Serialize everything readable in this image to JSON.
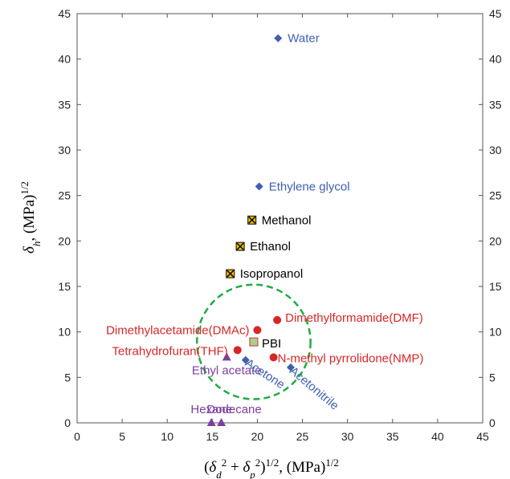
{
  "chart_data": {
    "type": "scatter",
    "title": "",
    "xlabel_parts": [
      "(",
      "δ",
      "d",
      "2",
      " + ",
      "δ",
      "p",
      "2",
      ")",
      "1/2",
      ", (MPa)",
      "1/2"
    ],
    "ylabel_parts": [
      "δ",
      "h",
      ", (MPa)",
      "1/2"
    ],
    "xlim": [
      0,
      45
    ],
    "ylim": [
      0,
      45
    ],
    "xticks": [
      "0",
      "5",
      "10",
      "15",
      "20",
      "25",
      "30",
      "35",
      "40",
      "45"
    ],
    "yticks": [
      "0",
      "5",
      "10",
      "15",
      "20",
      "25",
      "30",
      "35",
      "40",
      "45"
    ],
    "grid": false,
    "colors": {
      "blue": "#3f5fae",
      "red": "#d62728",
      "purple": "#7b3fa0",
      "black": "#000000",
      "circle": "#22aa44",
      "pbi_fill": "#a8d08d",
      "pbi_edge": "#cc3333",
      "cross_fill": "#f2c200"
    },
    "points": [
      {
        "label": "Water",
        "x": 22.3,
        "y": 42.3,
        "marker": "diamond",
        "color": "blue"
      },
      {
        "label": "Ethylene glycol",
        "x": 20.2,
        "y": 26.0,
        "marker": "diamond",
        "color": "blue"
      },
      {
        "label": "Methanol",
        "x": 19.4,
        "y": 22.3,
        "marker": "crossbox",
        "color": "black"
      },
      {
        "label": "Ethanol",
        "x": 18.1,
        "y": 19.4,
        "marker": "crossbox",
        "color": "black"
      },
      {
        "label": "Isopropanol",
        "x": 17.0,
        "y": 16.4,
        "marker": "crossbox",
        "color": "black"
      },
      {
        "label": "Dimethylformamide(DMF)",
        "x": 22.2,
        "y": 11.3,
        "marker": "circle",
        "color": "red"
      },
      {
        "label": "Dimethylacetamide(DMAc)",
        "x": 20.0,
        "y": 10.2,
        "marker": "circle",
        "color": "red"
      },
      {
        "label": "PBI",
        "x": 19.6,
        "y": 8.9,
        "marker": "square",
        "color": "pbi"
      },
      {
        "label": "Tetrahydrofuran(THF)",
        "x": 17.8,
        "y": 8.0,
        "marker": "circle",
        "color": "red"
      },
      {
        "label": "N-methyl pyrrolidone(NMP)",
        "x": 21.8,
        "y": 7.2,
        "marker": "circle",
        "color": "red"
      },
      {
        "label": "Ethyl acetate",
        "x": 16.6,
        "y": 7.2,
        "marker": "triangle",
        "color": "purple"
      },
      {
        "label": "Acetone",
        "x": 18.7,
        "y": 6.9,
        "marker": "diamond",
        "color": "blue"
      },
      {
        "label": "Acetonitrile",
        "x": 23.7,
        "y": 6.1,
        "marker": "diamond",
        "color": "blue"
      },
      {
        "label": "Hexane",
        "x": 14.9,
        "y": 0.0,
        "marker": "triangle",
        "color": "purple"
      },
      {
        "label": "Dodecane",
        "x": 16.0,
        "y": 0.0,
        "marker": "triangle",
        "color": "purple"
      }
    ],
    "circle": {
      "cx": 19.6,
      "cy": 8.9,
      "r": 6.3
    }
  }
}
